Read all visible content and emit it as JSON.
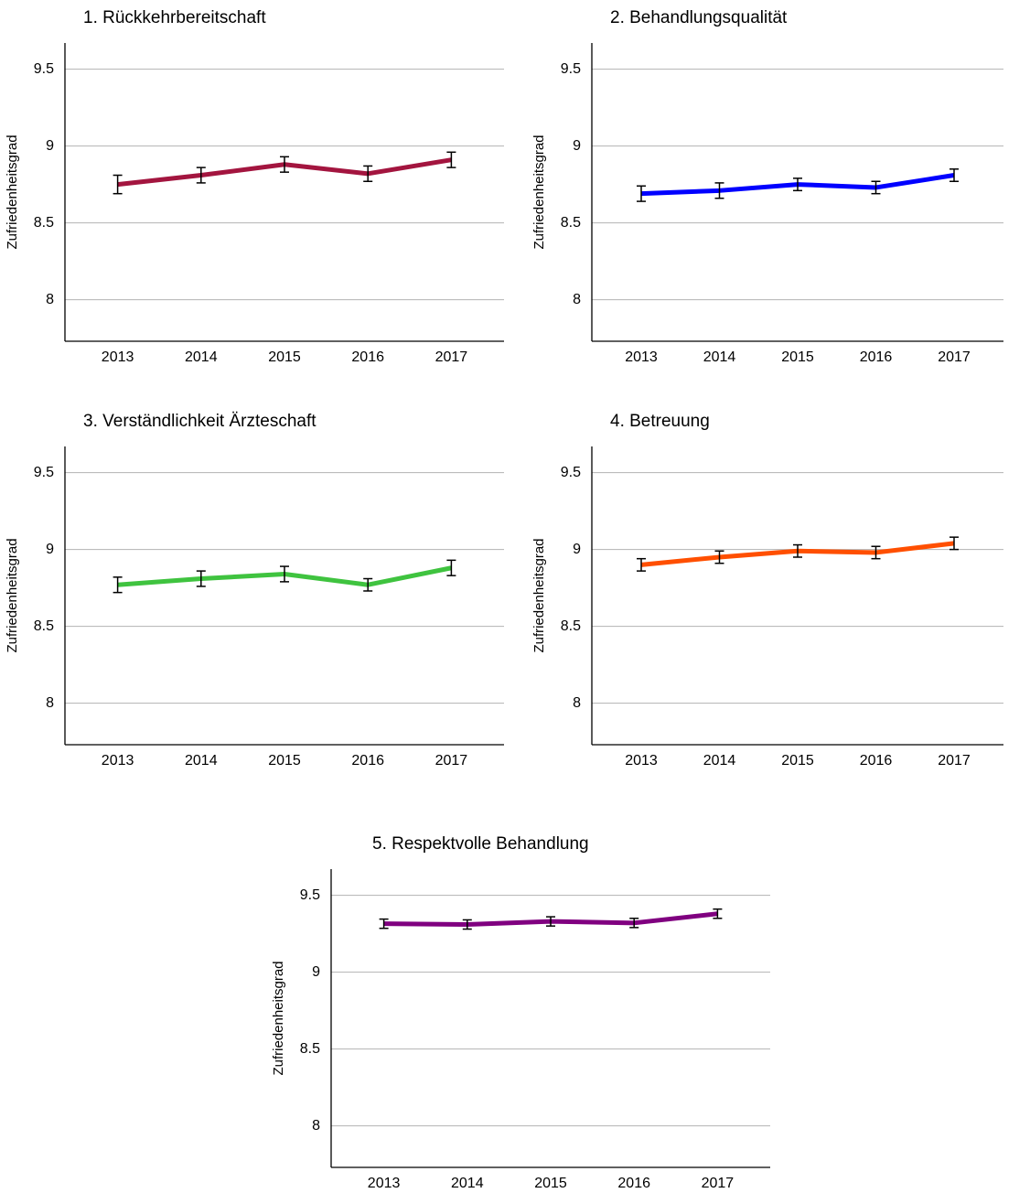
{
  "chart_data": [
    {
      "type": "line",
      "title": "1. Rückkehrbereitschaft",
      "y_label": "Zufriedenheitsgrad",
      "categories": [
        "2013",
        "2014",
        "2015",
        "2016",
        "2017"
      ],
      "series": [
        {
          "color": "#a3153f",
          "values": [
            8.75,
            8.81,
            8.88,
            8.82,
            8.91
          ],
          "errors": [
            0.06,
            0.05,
            0.05,
            0.05,
            0.05
          ]
        }
      ],
      "ylim": [
        7.73,
        9.67
      ],
      "yticks": [
        8,
        8.5,
        9,
        9.5
      ],
      "grid": true
    },
    {
      "type": "line",
      "title": "2. Behandlungsqualität",
      "y_label": "Zufriedenheitsgrad",
      "categories": [
        "2013",
        "2014",
        "2015",
        "2016",
        "2017"
      ],
      "series": [
        {
          "color": "#0000ff",
          "values": [
            8.69,
            8.71,
            8.75,
            8.73,
            8.81
          ],
          "errors": [
            0.05,
            0.05,
            0.04,
            0.04,
            0.04
          ]
        }
      ],
      "ylim": [
        7.73,
        9.67
      ],
      "yticks": [
        8,
        8.5,
        9,
        9.5
      ],
      "grid": true
    },
    {
      "type": "line",
      "title": "3. Verständlichkeit Ärzteschaft",
      "y_label": "Zufriedenheitsgrad",
      "categories": [
        "2013",
        "2014",
        "2015",
        "2016",
        "2017"
      ],
      "series": [
        {
          "color": "#3fc33f",
          "values": [
            8.77,
            8.81,
            8.84,
            8.77,
            8.88
          ],
          "errors": [
            0.05,
            0.05,
            0.05,
            0.04,
            0.05
          ]
        }
      ],
      "ylim": [
        7.73,
        9.67
      ],
      "yticks": [
        8,
        8.5,
        9,
        9.5
      ],
      "grid": true
    },
    {
      "type": "line",
      "title": "4. Betreuung",
      "y_label": "Zufriedenheitsgrad",
      "categories": [
        "2013",
        "2014",
        "2015",
        "2016",
        "2017"
      ],
      "series": [
        {
          "color": "#ff4f00",
          "values": [
            8.9,
            8.95,
            8.99,
            8.98,
            9.04
          ],
          "errors": [
            0.04,
            0.04,
            0.04,
            0.04,
            0.04
          ]
        }
      ],
      "ylim": [
        7.73,
        9.67
      ],
      "yticks": [
        8,
        8.5,
        9,
        9.5
      ],
      "grid": true
    },
    {
      "type": "line",
      "title": "5. Respektvolle Behandlung",
      "y_label": "Zufriedenheitsgrad",
      "categories": [
        "2013",
        "2014",
        "2015",
        "2016",
        "2017"
      ],
      "series": [
        {
          "color": "#800080",
          "values": [
            9.315,
            9.31,
            9.33,
            9.32,
            9.38
          ],
          "errors": [
            0.03,
            0.03,
            0.03,
            0.03,
            0.03
          ]
        }
      ],
      "ylim": [
        7.73,
        9.67
      ],
      "yticks": [
        8,
        8.5,
        9,
        9.5
      ],
      "grid": true
    }
  ]
}
